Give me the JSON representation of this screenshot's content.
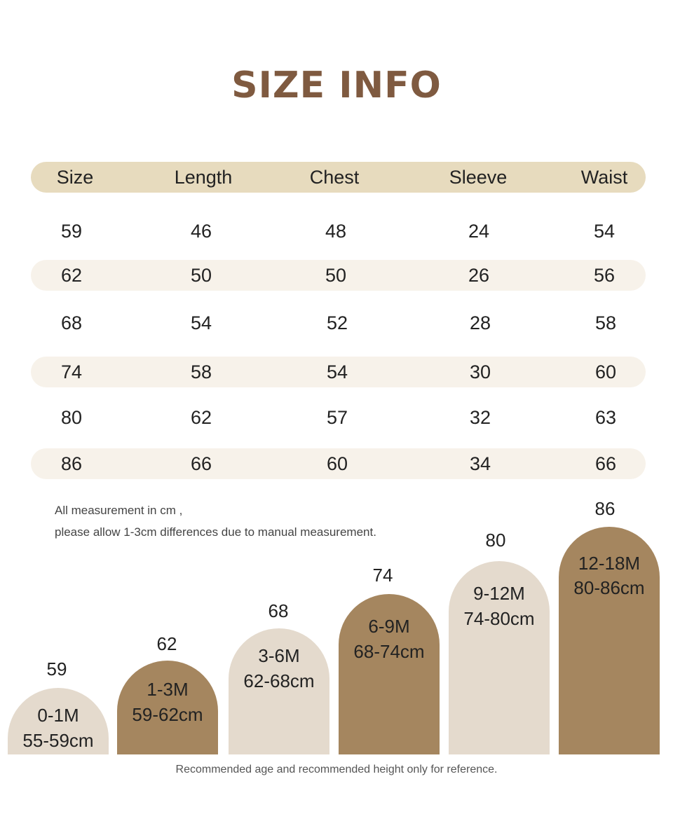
{
  "title": "SIZE INFO",
  "table": {
    "headers": [
      "Size",
      "Length",
      "Chest",
      "Sleeve",
      "Waist"
    ],
    "rows": [
      [
        "59",
        "46",
        "48",
        "24",
        "54"
      ],
      [
        "62",
        "50",
        "50",
        "26",
        "56"
      ],
      [
        "68",
        "54",
        "52",
        "28",
        "58"
      ],
      [
        "74",
        "58",
        "54",
        "30",
        "60"
      ],
      [
        "80",
        "62",
        "57",
        "32",
        "63"
      ],
      [
        "86",
        "66",
        "60",
        "34",
        "66"
      ]
    ]
  },
  "notes": {
    "line1": "All measurement in cm ,",
    "line2": "please allow 1-3cm differences due to manual measurement."
  },
  "arches": [
    {
      "size": "59",
      "age": "0-1M",
      "height": "55-59cm",
      "color": "#e4dacd"
    },
    {
      "size": "62",
      "age": "1-3M",
      "height": "59-62cm",
      "color": "#a5865f"
    },
    {
      "size": "68",
      "age": "3-6M",
      "height": "62-68cm",
      "color": "#e4dacd"
    },
    {
      "size": "74",
      "age": "6-9M",
      "height": "68-74cm",
      "color": "#a5865f"
    },
    {
      "size": "80",
      "age": "9-12M",
      "height": "74-80cm",
      "color": "#e4dacd"
    },
    {
      "size": "86",
      "age": "12-18M",
      "height": "80-86cm",
      "color": "#a5865f"
    }
  ],
  "footer": "Recommended age and recommended height only for reference.",
  "colors": {
    "title": "#7f5a40",
    "header_band": "#e7dbbe",
    "row_band": "#f7f2ea",
    "arch_light": "#e4dacd",
    "arch_dark": "#a5865f"
  }
}
